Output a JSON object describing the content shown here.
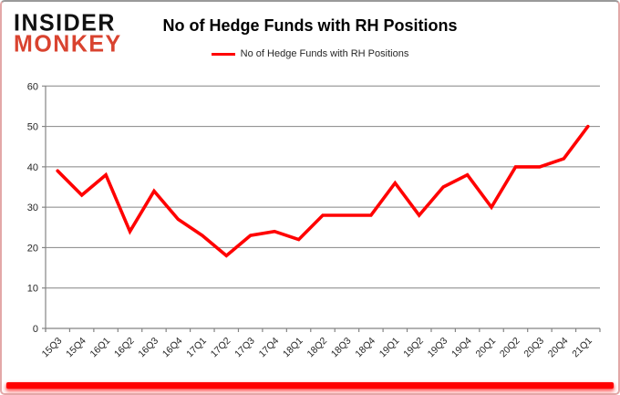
{
  "header": {
    "logo": {
      "line1": "INSIDER",
      "line2": "MONKEY",
      "line1_color": "#111111",
      "line2_color": "#d9432f"
    },
    "title": "No of Hedge Funds with RH Positions"
  },
  "legend": {
    "label": "No of Hedge Funds with RH Positions",
    "line_color": "#ff0000"
  },
  "chart_data": {
    "type": "line",
    "title": "No of Hedge Funds with RH Positions",
    "categories": [
      "15Q3",
      "15Q4",
      "16Q1",
      "16Q2",
      "16Q3",
      "16Q4",
      "17Q1",
      "17Q2",
      "17Q3",
      "17Q4",
      "18Q1",
      "18Q2",
      "18Q3",
      "18Q4",
      "19Q1",
      "19Q2",
      "19Q3",
      "19Q4",
      "20Q1",
      "20Q2",
      "20Q3",
      "20Q4",
      "21Q1"
    ],
    "series": [
      {
        "name": "No of Hedge Funds with RH Positions",
        "color": "#ff0000",
        "values": [
          39,
          33,
          38,
          24,
          34,
          27,
          23,
          18,
          23,
          24,
          22,
          28,
          28,
          28,
          36,
          28,
          35,
          38,
          30,
          40,
          40,
          42,
          50
        ]
      }
    ],
    "xlabel": "",
    "ylabel": "",
    "ylim": [
      0,
      60
    ],
    "yticks": [
      0,
      10,
      20,
      30,
      40,
      50,
      60
    ],
    "grid": true,
    "gridline_color": "#848484",
    "axis_color": "#848484",
    "tick_label_color": "#262626",
    "legend_position": "top-center"
  },
  "decor": {
    "bottom_bar_color": "#ff0000"
  }
}
